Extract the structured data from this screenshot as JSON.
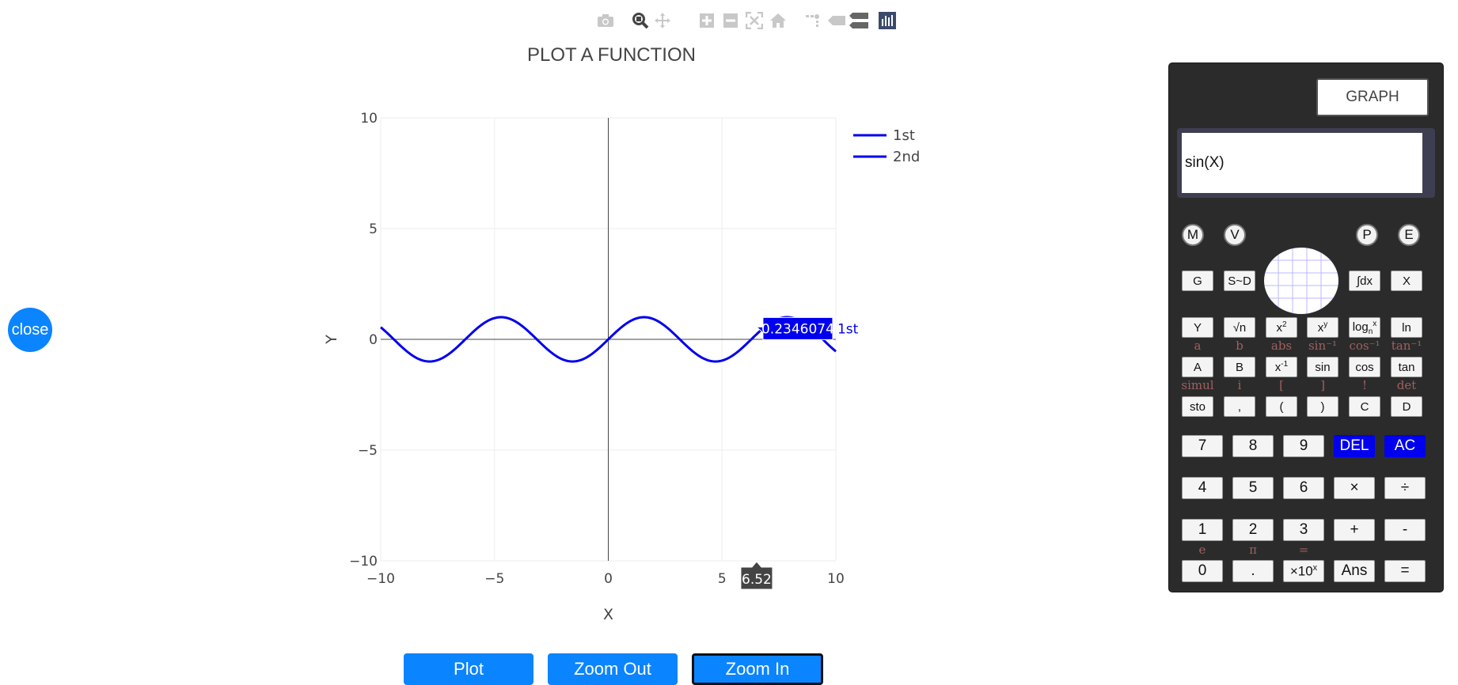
{
  "close_label": "close",
  "modebar": {
    "icons": [
      "camera-icon",
      "zoom-icon",
      "pan-icon",
      "zoom-in-icon",
      "zoom-out-icon",
      "autoscale-icon",
      "reset-axes-icon",
      "spike-lines-icon",
      "hover-closest-icon",
      "hover-compare-icon",
      "plotly-logo-icon"
    ]
  },
  "chart": {
    "title": "PLOT A FUNCTION",
    "hover_value": "0.2346074",
    "hover_series": "1st",
    "hover_x": "6.52",
    "colors": {
      "line": "#0000ee",
      "grid": "#eeeeee",
      "zero": "#444444"
    }
  },
  "chart_data": {
    "type": "line",
    "title": "PLOT A FUNCTION",
    "xlabel": "X",
    "ylabel": "Y",
    "xlim": [
      -10,
      10
    ],
    "ylim": [
      -10,
      10
    ],
    "x_ticks": [
      "−10",
      "−5",
      "0",
      "5",
      "10"
    ],
    "y_ticks": [
      "10",
      "5",
      "0",
      "−5",
      "−10"
    ],
    "grid": true,
    "legend_position": "top-right",
    "series": [
      {
        "name": "1st",
        "function": "sin(X)",
        "x_range": [
          -10,
          10
        ]
      },
      {
        "name": "2nd",
        "function": "",
        "x_range": []
      }
    ],
    "hover": {
      "series": "1st",
      "x": 6.52,
      "y": 0.2346074
    }
  },
  "buttons": {
    "plot": "Plot",
    "zoom_out": "Zoom Out",
    "zoom_in": "Zoom In"
  },
  "calculator": {
    "graph_label": "GRAPH",
    "display_value": "sin(X)",
    "round_buttons": [
      "M",
      "V",
      "P",
      "E"
    ],
    "row1": [
      "G",
      "S~D",
      "∫dx",
      "X"
    ],
    "row2": [
      "Y",
      "√n",
      "x2",
      "xy",
      "logn",
      "ln"
    ],
    "row2_shift": [
      "a",
      "b",
      "abs",
      "sin⁻¹",
      "cos⁻¹",
      "tan⁻¹"
    ],
    "row3": [
      "A",
      "B",
      "x-1",
      "sin",
      "cos",
      "tan"
    ],
    "row3_shift": [
      "simul",
      "i",
      "[",
      "]",
      "!",
      "det"
    ],
    "row4": [
      "sto",
      ",",
      "(",
      ")",
      "C",
      "D"
    ],
    "num_row1": [
      "7",
      "8",
      "9",
      "DEL",
      "AC"
    ],
    "num_row2": [
      "4",
      "5",
      "6",
      "×",
      "÷"
    ],
    "num_row3": [
      "1",
      "2",
      "3",
      "+",
      "-"
    ],
    "num_row3_shift": [
      "e",
      "π",
      "="
    ],
    "num_row4": [
      "0",
      ".",
      "×10x",
      "Ans",
      "="
    ],
    "colors": {
      "accent": "#0000ee",
      "body": "#2b2b2b",
      "shift_label": "#a06060"
    }
  }
}
